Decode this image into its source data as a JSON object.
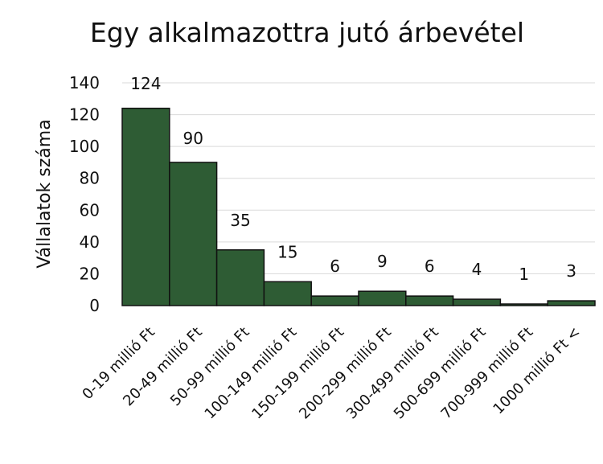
{
  "chart_data": {
    "type": "bar",
    "title": "Egy alkalmazottra jutó árbevétel",
    "xlabel": "",
    "ylabel": "Vállalatok száma",
    "categories": [
      "0-19 millió Ft",
      "20-49 millió Ft",
      "50-99 millió Ft",
      "100-149 millió Ft",
      "150-199 millió Ft",
      "200-299 millió Ft",
      "300-499 millió Ft",
      "500-699 millió Ft",
      "700-999 millió Ft",
      "1000 millió Ft <"
    ],
    "values": [
      124,
      90,
      35,
      15,
      6,
      9,
      6,
      4,
      1,
      3
    ],
    "ylim": [
      0,
      140
    ],
    "yticks": [
      0,
      20,
      40,
      60,
      80,
      100,
      120,
      140
    ],
    "grid": true,
    "legend": "none",
    "bar_color": "#2e5c34"
  }
}
